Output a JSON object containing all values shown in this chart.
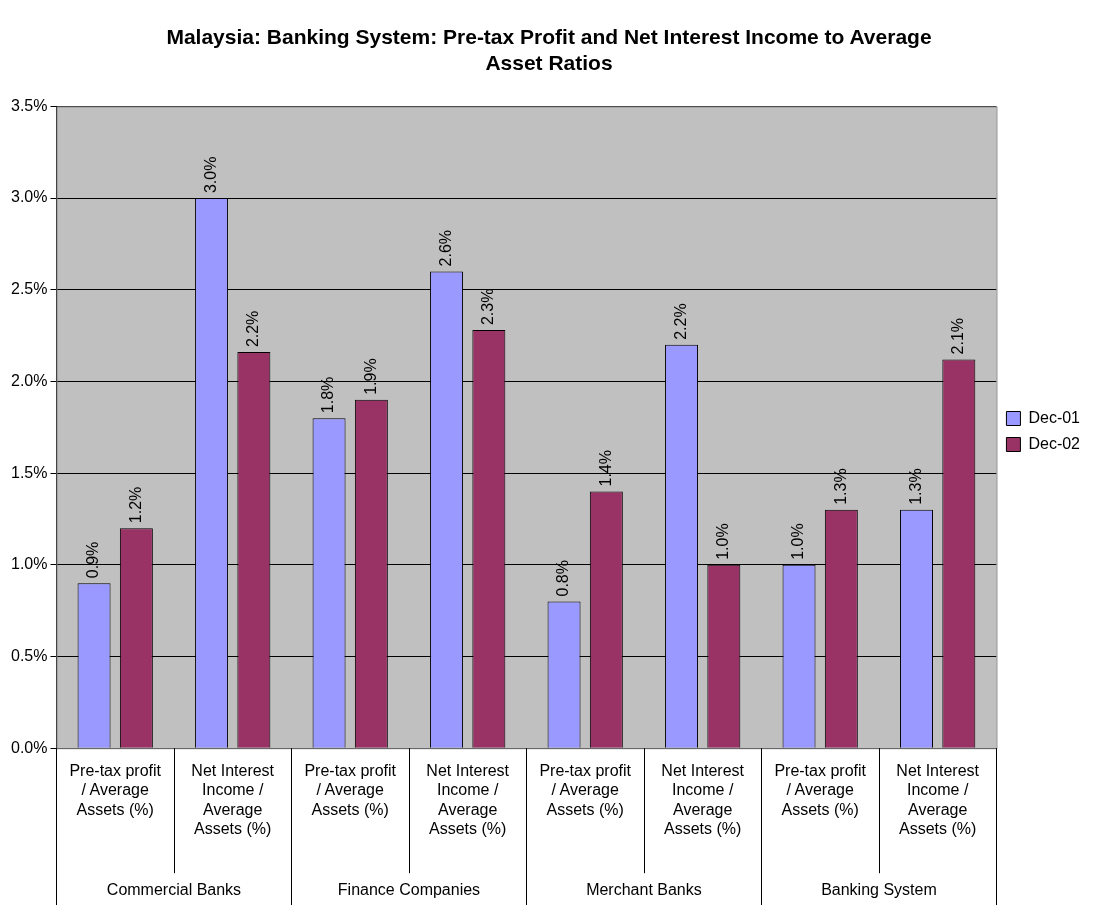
{
  "chart_data": {
    "type": "bar",
    "title": "Malaysia: Banking System: Pre-tax Profit and Net Interest Income to Average Asset Ratios",
    "categories": [
      "Pre-tax profit / Average Assets (%)",
      "Net Interest Income / Average Assets (%)",
      "Pre-tax profit / Average Assets (%)",
      "Net Interest Income / Average Assets (%)",
      "Pre-tax profit / Average Assets (%)",
      "Net Interest Income / Average Assets (%)",
      "Pre-tax profit / Average Assets (%)",
      "Net Interest Income / Average Assets (%)"
    ],
    "series": [
      {
        "name": "Dec-01",
        "color": "#9999ff",
        "values": [
          0.9,
          3.0,
          1.8,
          2.6,
          0.8,
          2.2,
          1.0,
          1.3
        ],
        "value_labels": [
          "0.9%",
          "3.0%",
          "1.8%",
          "2.6%",
          "0.8%",
          "2.2%",
          "1.0%",
          "1.3%"
        ]
      },
      {
        "name": "Dec-02",
        "color": "#993366",
        "values": [
          1.2,
          2.16,
          1.9,
          2.28,
          1.4,
          1.0,
          1.3,
          2.12
        ],
        "value_labels": [
          "1.2%",
          "2.2%",
          "1.9%",
          "2.3%",
          "1.4%",
          "1.0%",
          "1.3%",
          "2.1%"
        ]
      }
    ],
    "annotations": [
      "Commercial Banks",
      "Finance Companies",
      "Merchant Banks",
      "Banking System"
    ],
    "ylim": [
      0,
      3.5
    ],
    "yticks": [
      {
        "value": 0,
        "label": "0.0%"
      },
      {
        "value": 0.5,
        "label": "0.5%"
      },
      {
        "value": 1,
        "label": "1.0%"
      },
      {
        "value": 1.5,
        "label": "1.5%"
      },
      {
        "value": 2,
        "label": "2.0%"
      },
      {
        "value": 2.5,
        "label": "2.5%"
      },
      {
        "value": 3,
        "label": "3.0%"
      },
      {
        "value": 3.5,
        "label": "3.5%"
      }
    ],
    "grid": "y",
    "legend": "right"
  }
}
